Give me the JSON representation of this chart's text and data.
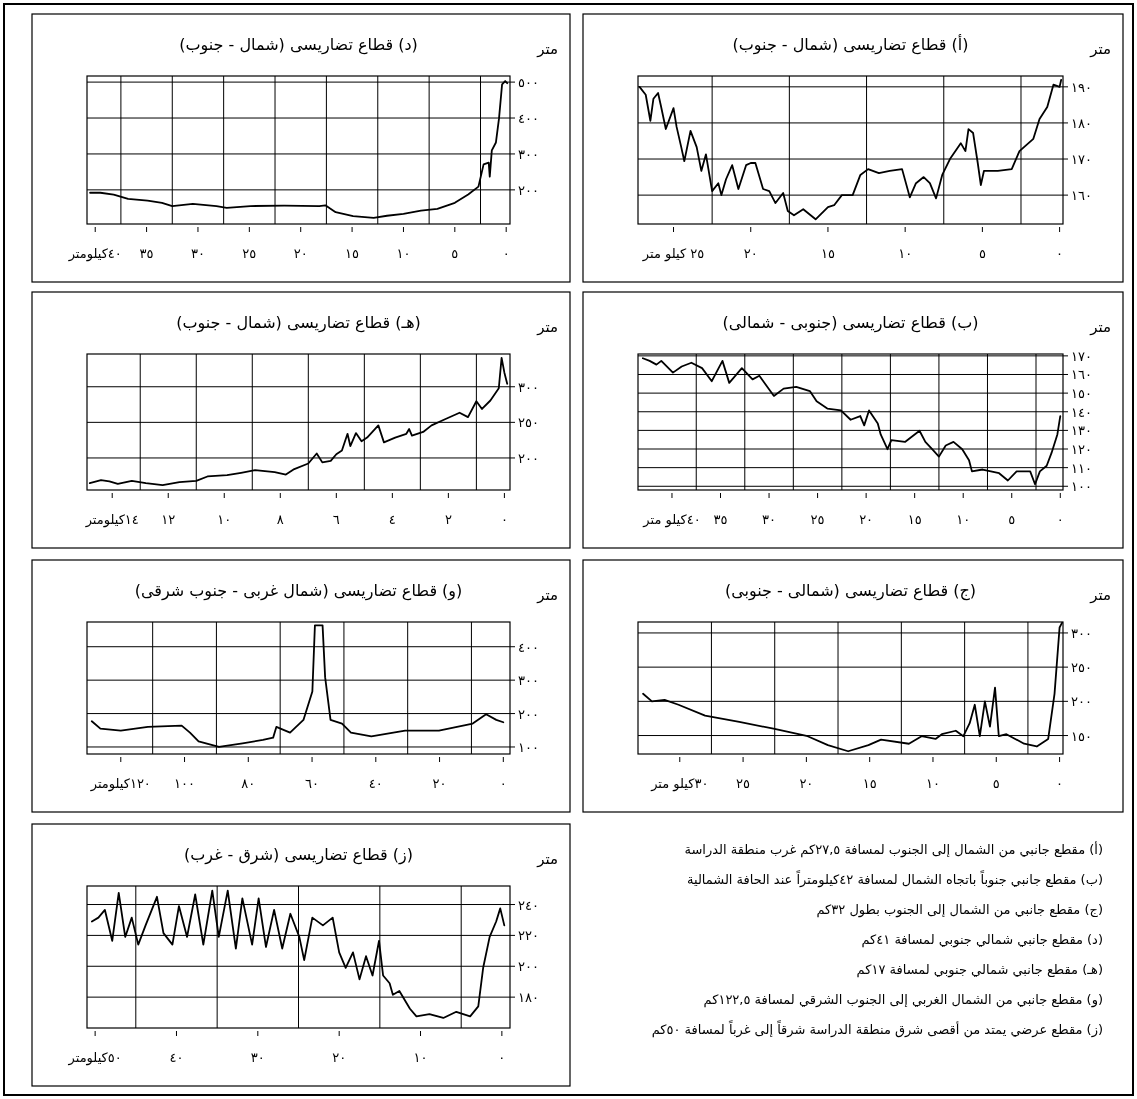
{
  "chart_data": [
    {
      "type": "line",
      "title": "(أ) قطاع تضاريسى (شمال - جنوب)",
      "ylabel": "متر",
      "grid": true,
      "xlim": [
        27.3,
        -0.22
      ],
      "ylim": [
        152,
        193
      ],
      "xticks": [
        {
          "value": 25,
          "label": "٢٥ كيلو متر"
        },
        {
          "value": 22.5,
          "label": null
        },
        {
          "value": 20,
          "label": "٢٠"
        },
        {
          "value": 17.5,
          "label": null
        },
        {
          "value": 15,
          "label": "١٥"
        },
        {
          "value": 12.5,
          "label": null
        },
        {
          "value": 10,
          "label": "١٠"
        },
        {
          "value": 7.5,
          "label": null
        },
        {
          "value": 5,
          "label": "٥"
        },
        {
          "value": 2.5,
          "label": null
        },
        {
          "value": 0,
          "label": "٠"
        }
      ],
      "yticks": [
        {
          "value": 160,
          "label": "١٦٠"
        },
        {
          "value": 170,
          "label": "١٧٠"
        },
        {
          "value": 180,
          "label": "١٨٠"
        },
        {
          "value": 190,
          "label": "١٩٠"
        }
      ],
      "series": [
        {
          "color": "#000000",
          "x": [
            27.2,
            26.8,
            26.5,
            26.3,
            26,
            25.8,
            25.5,
            25,
            24.8,
            24.5,
            24.3,
            23.9,
            23.5,
            23.2,
            22.9,
            22.5,
            22.1,
            21.9,
            21.6,
            21.2,
            20.8,
            20.3,
            20,
            19.7,
            19.2,
            18.8,
            18.4,
            17.9,
            17.6,
            17.2,
            16.6,
            15.8,
            15,
            14.6,
            14.1,
            13.4,
            12.9,
            12.4,
            11.7,
            11,
            10.2,
            9.7,
            9.3,
            8.8,
            8.4,
            8,
            7.6,
            7.1,
            6.4,
            6.1,
            5.9,
            5.6,
            5.3,
            5.1,
            4.9,
            4,
            3.1,
            2.6,
            1.7,
            1.3,
            0.8,
            0.4,
            0,
            -0.1
          ],
          "values": [
            190,
            187.8,
            180.6,
            186.7,
            188.3,
            184.4,
            178.3,
            184.1,
            178.9,
            173.3,
            169.4,
            177.8,
            173.3,
            166.7,
            171.3,
            161.1,
            163.3,
            160,
            164.4,
            168.3,
            161.7,
            168.3,
            168.9,
            168.9,
            161.7,
            161.1,
            157.8,
            160.6,
            155.6,
            154.4,
            156.1,
            153.3,
            156.7,
            157.2,
            160,
            160,
            165.6,
            167.2,
            166.1,
            166.7,
            167.2,
            159.4,
            163.3,
            165,
            163.3,
            159.1,
            165.6,
            170,
            174.4,
            172.2,
            178.3,
            177.2,
            168.9,
            162.8,
            166.7,
            166.7,
            167.2,
            172.2,
            175.6,
            181.1,
            184.4,
            190.6,
            190,
            191.9
          ]
        }
      ]
    },
    {
      "type": "line",
      "title": "(ب) قطاع تضاريسى (جنوبى - شمالى)",
      "ylabel": "متر",
      "grid": true,
      "xlim": [
        43.5,
        -0.28
      ],
      "ylim": [
        98,
        171
      ],
      "xticks": [
        {
          "value": 40,
          "label": "٤٠كيلو متر"
        },
        {
          "value": 37.5,
          "label": null
        },
        {
          "value": 35,
          "label": "٣٥"
        },
        {
          "value": 32.5,
          "label": null
        },
        {
          "value": 30,
          "label": "٣٠"
        },
        {
          "value": 27.5,
          "label": null
        },
        {
          "value": 25,
          "label": "٢٥"
        },
        {
          "value": 22.5,
          "label": null
        },
        {
          "value": 20,
          "label": "٢٠"
        },
        {
          "value": 17.5,
          "label": null
        },
        {
          "value": 15,
          "label": "١٥"
        },
        {
          "value": 12.5,
          "label": null
        },
        {
          "value": 10,
          "label": "١٠"
        },
        {
          "value": 7.5,
          "label": null
        },
        {
          "value": 5,
          "label": "٥"
        },
        {
          "value": 2.5,
          "label": null
        },
        {
          "value": 0,
          "label": "٠"
        }
      ],
      "yticks": [
        {
          "value": 100,
          "label": "١٠٠"
        },
        {
          "value": 110,
          "label": "١١٠"
        },
        {
          "value": 120,
          "label": "١٢٠"
        },
        {
          "value": 130,
          "label": "١٣٠"
        },
        {
          "value": 140,
          "label": "١٤٠"
        },
        {
          "value": 150,
          "label": "١٥٠"
        },
        {
          "value": 160,
          "label": "١٦٠"
        },
        {
          "value": 170,
          "label": "١٧٠"
        }
      ],
      "series": [
        {
          "color": "#000000",
          "x": [
            43,
            42.3,
            41.6,
            41.1,
            39.9,
            39,
            38,
            36.9,
            35.9,
            34.8,
            34.1,
            32.8,
            31.7,
            31,
            29.5,
            28.5,
            27.2,
            25.8,
            25.1,
            24,
            22.6,
            21.6,
            20.6,
            20.2,
            19.7,
            18.8,
            18.5,
            17.8,
            17.4,
            16,
            14.5,
            13.9,
            13.2,
            12.5,
            11.8,
            11,
            10.1,
            9.4,
            9.1,
            8,
            6.3,
            5.4,
            4.5,
            3.1,
            2.6,
            2.1,
            1.4,
            0.9,
            0.3,
            0
          ],
          "values": [
            168.7,
            167.3,
            165.3,
            167.3,
            161,
            164.3,
            166.3,
            163.4,
            156.4,
            167.3,
            155.5,
            163.4,
            157.4,
            159.3,
            148.5,
            152.4,
            153.4,
            151.1,
            145.6,
            141.7,
            140.7,
            135.7,
            137.7,
            132.7,
            140.7,
            133.7,
            127.8,
            119.9,
            124.8,
            123.8,
            129.8,
            123.8,
            119.9,
            115.9,
            121.9,
            123.8,
            119.9,
            114,
            108,
            109,
            107,
            103.1,
            108,
            108,
            101.1,
            108,
            111,
            117.9,
            127.8,
            137.7
          ]
        }
      ]
    },
    {
      "type": "line",
      "title": "(ج) قطاع تضاريسى (شمالى - جنوبى)",
      "ylabel": "متر",
      "grid": true,
      "xlim": [
        33.3,
        -0.27
      ],
      "ylim": [
        123,
        316
      ],
      "xticks": [
        {
          "value": 30,
          "label": "٣٠كيلو متر"
        },
        {
          "value": 27.5,
          "label": null
        },
        {
          "value": 25,
          "label": "٢٥"
        },
        {
          "value": 22.5,
          "label": null
        },
        {
          "value": 20,
          "label": "٢٠"
        },
        {
          "value": 17.5,
          "label": null
        },
        {
          "value": 15,
          "label": "١٥"
        },
        {
          "value": 12.5,
          "label": null
        },
        {
          "value": 10,
          "label": "١٠"
        },
        {
          "value": 7.5,
          "label": null
        },
        {
          "value": 5,
          "label": "٥"
        },
        {
          "value": 2.5,
          "label": null
        },
        {
          "value": 0,
          "label": "٠"
        }
      ],
      "yticks": [
        {
          "value": 150,
          "label": "١٥٠"
        },
        {
          "value": 200,
          "label": "٢٠٠"
        },
        {
          "value": 250,
          "label": "٢٥٠"
        },
        {
          "value": 300,
          "label": "٣٠٠"
        }
      ],
      "series": [
        {
          "color": "#000000",
          "x": [
            32.9,
            32.2,
            31.2,
            30.1,
            28,
            25.3,
            22.6,
            19.9,
            18.3,
            16.7,
            15.1,
            14.1,
            11.9,
            10.9,
            9.8,
            9.3,
            8.2,
            7.6,
            7.1,
            6.7,
            6.3,
            5.9,
            5.5,
            5.1,
            4.8,
            4.2,
            2.8,
            1.8,
            0.9,
            0.4,
            0,
            -0.2
          ],
          "values": [
            211,
            200,
            202,
            195,
            179,
            170,
            160,
            149,
            136,
            127,
            136,
            144,
            138,
            149,
            145,
            152,
            157,
            149,
            168,
            195,
            149,
            200,
            163,
            220,
            149,
            152,
            138,
            134,
            145,
            211,
            308,
            315
          ]
        }
      ]
    },
    {
      "type": "line",
      "title": "(د) قطاع تضاريسى (شمال - جنوب)",
      "ylabel": "متر",
      "grid": true,
      "xlim": [
        40.8,
        -0.37
      ],
      "ylim": [
        105,
        517
      ],
      "xticks": [
        {
          "value": 40,
          "label": "٤٠كيلومتر"
        },
        {
          "value": 37.5,
          "label": null
        },
        {
          "value": 35,
          "label": "٣٥"
        },
        {
          "value": 32.5,
          "label": null
        },
        {
          "value": 30,
          "label": "٣٠"
        },
        {
          "value": 27.5,
          "label": null
        },
        {
          "value": 25,
          "label": "٢٥"
        },
        {
          "value": 22.5,
          "label": null
        },
        {
          "value": 20,
          "label": "٢٠"
        },
        {
          "value": 17.5,
          "label": null
        },
        {
          "value": 15,
          "label": "١٥"
        },
        {
          "value": 12.5,
          "label": null
        },
        {
          "value": 10,
          "label": "١٠"
        },
        {
          "value": 7.5,
          "label": null
        },
        {
          "value": 5,
          "label": "٥"
        },
        {
          "value": 2.5,
          "label": null
        },
        {
          "value": 0,
          "label": "٠"
        }
      ],
      "yticks": [
        {
          "value": 200,
          "label": "٢٠٠"
        },
        {
          "value": 300,
          "label": "٣٠٠"
        },
        {
          "value": 400,
          "label": "٤٠٠"
        },
        {
          "value": 500,
          "label": "٥٠٠"
        }
      ],
      "series": [
        {
          "color": "#000000",
          "x": [
            40.5,
            39.5,
            38.2,
            36.8,
            34.9,
            33.5,
            32.5,
            30.5,
            28.2,
            27.2,
            24.9,
            21.6,
            18.2,
            17.6,
            16.6,
            14.9,
            12.9,
            11.6,
            10,
            8.3,
            6.7,
            5,
            3.7,
            2.7,
            2.2,
            1.7,
            1.6,
            1.4,
            1,
            0.7,
            0.4,
            0.1,
            -0.1
          ],
          "values": [
            192,
            192,
            187,
            175,
            170,
            164,
            155,
            161,
            155,
            150,
            155,
            156,
            155,
            157,
            138,
            127,
            122,
            128,
            133,
            142,
            147,
            164,
            187,
            209,
            271,
            276,
            237,
            310,
            332,
            399,
            494,
            503,
            497
          ]
        }
      ]
    },
    {
      "type": "line",
      "title": "(هـ) قطاع تضاريسى (شمال - جنوب)",
      "ylabel": "متر",
      "grid": true,
      "xlim": [
        14.9,
        -0.2
      ],
      "ylim": [
        155,
        346
      ],
      "xticks": [
        {
          "value": 14,
          "label": "١٤كيلومتر"
        },
        {
          "value": 13,
          "label": null
        },
        {
          "value": 12,
          "label": "١٢"
        },
        {
          "value": 11,
          "label": null
        },
        {
          "value": 10,
          "label": "١٠"
        },
        {
          "value": 9,
          "label": null
        },
        {
          "value": 8,
          "label": "٨"
        },
        {
          "value": 7,
          "label": null
        },
        {
          "value": 6,
          "label": "٦"
        },
        {
          "value": 5,
          "label": null
        },
        {
          "value": 4,
          "label": "٤"
        },
        {
          "value": 3,
          "label": null
        },
        {
          "value": 2,
          "label": "٢"
        },
        {
          "value": 1,
          "label": null
        },
        {
          "value": 0,
          "label": "٠"
        }
      ],
      "yticks": [
        {
          "value": 200,
          "label": "٢٠٠"
        },
        {
          "value": 250,
          "label": "٢٥٠"
        },
        {
          "value": 300,
          "label": "٣٠٠"
        }
      ],
      "series": [
        {
          "color": "#000000",
          "x": [
            14.8,
            14.4,
            14.1,
            13.8,
            13.3,
            12.8,
            12.2,
            11.6,
            11,
            10.6,
            9.9,
            9.4,
            8.9,
            8.2,
            7.8,
            7.5,
            7,
            6.7,
            6.5,
            6.2,
            6,
            5.8,
            5.6,
            5.5,
            5.3,
            5.1,
            4.9,
            4.5,
            4.3,
            3.9,
            3.5,
            3.4,
            3.3,
            2.9,
            2.6,
            2.1,
            1.6,
            1.3,
            1,
            0.8,
            0.5,
            0.2,
            0.1,
            0,
            -0.1
          ],
          "values": [
            164.6,
            168.8,
            167.2,
            163.5,
            167.7,
            164.6,
            162,
            166.1,
            167.7,
            174,
            176,
            179.2,
            182.8,
            180.2,
            176.6,
            184.4,
            192.2,
            206.3,
            193.8,
            195.8,
            205.2,
            210.4,
            233.9,
            216.7,
            234.9,
            223.4,
            228.6,
            245.8,
            221.9,
            228.6,
            233.9,
            240.6,
            231.3,
            236.5,
            245.8,
            254.7,
            263.5,
            257.3,
            279.7,
            268.8,
            280.7,
            297.9,
            340.6,
            319.8,
            304.2
          ]
        }
      ]
    },
    {
      "type": "line",
      "title": "(و) قطاع تضاريسى (شمال غربى - جنوب شرقى)",
      "ylabel": "متر",
      "grid": true,
      "xlim": [
        130.6,
        -2.1
      ],
      "ylim": [
        79,
        474
      ],
      "xticks": [
        {
          "value": 120,
          "label": "١٢٠كيلومتر"
        },
        {
          "value": 110,
          "label": null
        },
        {
          "value": 100,
          "label": "١٠٠"
        },
        {
          "value": 90,
          "label": null
        },
        {
          "value": 80,
          "label": "٨٠"
        },
        {
          "value": 70,
          "label": null
        },
        {
          "value": 60,
          "label": "٦٠"
        },
        {
          "value": 50,
          "label": null
        },
        {
          "value": 40,
          "label": "٤٠"
        },
        {
          "value": 30,
          "label": null
        },
        {
          "value": 20,
          "label": "٢٠"
        },
        {
          "value": 10,
          "label": null
        },
        {
          "value": 0,
          "label": "٠"
        }
      ],
      "yticks": [
        {
          "value": 100,
          "label": "١٠٠"
        },
        {
          "value": 200,
          "label": "٢٠٠"
        },
        {
          "value": 300,
          "label": "٣٠٠"
        },
        {
          "value": 400,
          "label": "٤٠٠"
        }
      ],
      "series": [
        {
          "color": "#000000",
          "x": [
            129.1,
            126.4,
            120,
            111.5,
            100.9,
            98.3,
            95.6,
            89.2,
            81.8,
            75.4,
            72.2,
            71.2,
            66.9,
            62.7,
            59.9,
            59.1,
            56.7,
            55.9,
            54.2,
            50.6,
            47.8,
            41.4,
            30.8,
            20.2,
            9.6,
            5.4,
            2.2,
            0
          ],
          "values": [
            177,
            155,
            149,
            160,
            164,
            143,
            117,
            100,
            111,
            121,
            128,
            160,
            143,
            181,
            266,
            464,
            464,
            309,
            181,
            170,
            143,
            132,
            149,
            149,
            170,
            198,
            181,
            174
          ]
        }
      ]
    },
    {
      "type": "line",
      "title": "(ز) قطاع تضاريسى (شرق - غرب)",
      "ylabel": "متر",
      "grid": true,
      "xlim": [
        51,
        -1
      ],
      "ylim": [
        160,
        252
      ],
      "xticks": [
        {
          "value": 50,
          "label": "٥٠كيلومتر"
        },
        {
          "value": 45,
          "label": null
        },
        {
          "value": 40,
          "label": "٤٠"
        },
        {
          "value": 35,
          "label": null
        },
        {
          "value": 30,
          "label": "٣٠"
        },
        {
          "value": 25,
          "label": null
        },
        {
          "value": 20,
          "label": "٢٠"
        },
        {
          "value": 15,
          "label": null
        },
        {
          "value": 10,
          "label": "١٠"
        },
        {
          "value": 5,
          "label": null
        },
        {
          "value": 0,
          "label": "٠"
        }
      ],
      "yticks": [
        {
          "value": 180,
          "label": "١٨٠"
        },
        {
          "value": 200,
          "label": "٢٠٠"
        },
        {
          "value": 220,
          "label": "٢٢٠"
        },
        {
          "value": 240,
          "label": "٢٤٠"
        }
      ],
      "series": [
        {
          "color": "#000000",
          "x": [
            50.4,
            49.6,
            48.8,
            47.9,
            47.1,
            46.3,
            45.5,
            44.7,
            43.8,
            42.4,
            41.6,
            40.5,
            39.7,
            38.7,
            37.7,
            36.7,
            35.6,
            34.8,
            33.7,
            32.7,
            31.9,
            30.7,
            29.9,
            29,
            28,
            27,
            26,
            24.9,
            24.3,
            23.3,
            22,
            20.8,
            20,
            19.2,
            18.3,
            17.5,
            16.7,
            15.9,
            15.1,
            14.6,
            13.8,
            13.4,
            12.6,
            11.3,
            10.5,
            8.9,
            7.2,
            5.6,
            3.9,
            2.9,
            2.3,
            1.5,
            0.7,
            0.2,
            -0.3
          ],
          "values": [
            229,
            231.5,
            236.5,
            216.5,
            247.5,
            219,
            231.5,
            214,
            226.5,
            245,
            221.5,
            214,
            239,
            219,
            246.5,
            214,
            249,
            219,
            249,
            211.5,
            244,
            214,
            244,
            212.5,
            236.5,
            211.5,
            234,
            219,
            204,
            231.5,
            226.5,
            231.5,
            209,
            199,
            209,
            191.5,
            206.5,
            194,
            216.5,
            194,
            189,
            181.5,
            184,
            172.5,
            167.5,
            169,
            166.5,
            170.5,
            167.5,
            174,
            199,
            219,
            229,
            237.5,
            226.5
          ]
        }
      ]
    },
    {
      "type": "other",
      "annotations": [
        "(أ)   مقطع جانبي من الشمال إلى الجنوب لمسافة ٢٧,٥كم غرب منطقة الدراسة",
        "(ب)  مقطع جانبي جنوباً باتجاه الشمال لمسافة ٤٢كيلومتراً عند الحافة الشمالية",
        "(ج)   مقطع جانبي من الشمال إلى الجنوب بطول ٣٢كم",
        "(د)   مقطع جانبي شمالي جنوبي لمسافة ٤١كم",
        "(هـ)  مقطع جانبي شمالي جنوبي لمسافة ١٧كم",
        "(و)   مقطع جانبي من الشمال الغربي إلى الجنوب الشرقي لمسافة ١٢٢,٥كم",
        "(ز)   مقطع عرضي يمتد من أقصى شرق منطقة الدراسة شرقاً إلى غرباً لمسافة ٥٠كم"
      ]
    }
  ]
}
